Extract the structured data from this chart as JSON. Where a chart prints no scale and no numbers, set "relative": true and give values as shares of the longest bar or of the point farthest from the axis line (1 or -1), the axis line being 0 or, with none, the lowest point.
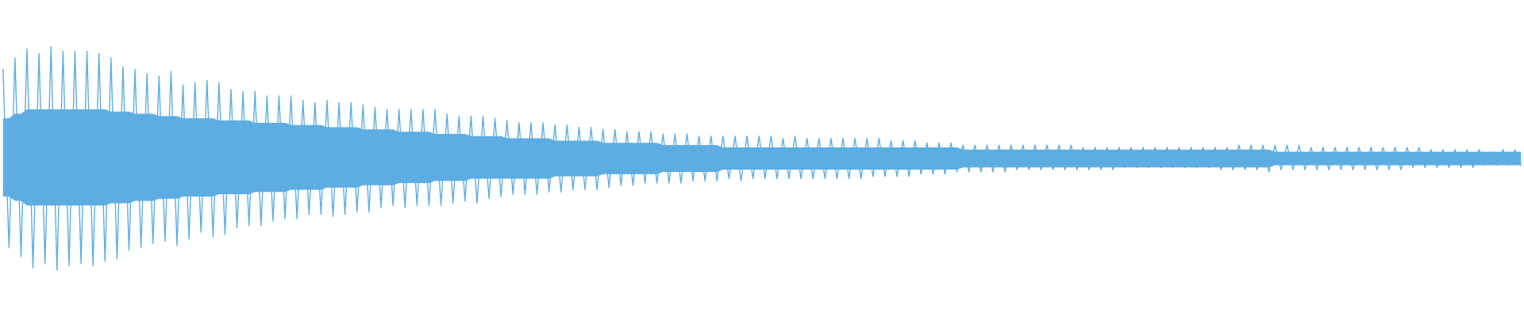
{
  "chart_data": {
    "type": "line",
    "relative": true,
    "categories": [
      null,
      null,
      null,
      null,
      null,
      null,
      null,
      null,
      null,
      null,
      null,
      null,
      null,
      null,
      null,
      null,
      null,
      null,
      null,
      null,
      null,
      null,
      null,
      null,
      null,
      null,
      null,
      null,
      null,
      null,
      null,
      null,
      null,
      null,
      null,
      null,
      null,
      null,
      null,
      null,
      null,
      null,
      null,
      null,
      null,
      null,
      null,
      null,
      null,
      null,
      null,
      null,
      null,
      null,
      null,
      null,
      null,
      null,
      null,
      null,
      null,
      null,
      null,
      null,
      null,
      null,
      null,
      null,
      null,
      null,
      null,
      null,
      null,
      null,
      null,
      null,
      null,
      null,
      null,
      null,
      null,
      null,
      null,
      null,
      null,
      null,
      null,
      null,
      null,
      null,
      null,
      null,
      null,
      null,
      null,
      null,
      null,
      null,
      null,
      null,
      null,
      null,
      null,
      null,
      null,
      null,
      null,
      null,
      null,
      null,
      null,
      null,
      null,
      null,
      null,
      null,
      null,
      null,
      null,
      null,
      null,
      null,
      null,
      null,
      null,
      null,
      null,
      null,
      null,
      null,
      null,
      null,
      null,
      null,
      null,
      null,
      null,
      null,
      null,
      null,
      null,
      null,
      null,
      null,
      null,
      null,
      null,
      null,
      null,
      null,
      null,
      null,
      null,
      null,
      null,
      null,
      null,
      null,
      null,
      null,
      null,
      null,
      null,
      null,
      null,
      null,
      null,
      null,
      null,
      null,
      null,
      null,
      null,
      null,
      null,
      null,
      null,
      null,
      null,
      null,
      null,
      null,
      null,
      null,
      null,
      null,
      null,
      null,
      null,
      null,
      null,
      null,
      null,
      null,
      null,
      null,
      null,
      null,
      null,
      null,
      null,
      null,
      null,
      null,
      null,
      null,
      null,
      null,
      null,
      null,
      null,
      null,
      null,
      null,
      null,
      null,
      null,
      null,
      null,
      null,
      null,
      null,
      null,
      null,
      null,
      null,
      null,
      null,
      null,
      null,
      null,
      null,
      null,
      null,
      null,
      null,
      null,
      null,
      null,
      null,
      null,
      null,
      null,
      null,
      null,
      null,
      null,
      null,
      null,
      null,
      null,
      null,
      null,
      null
    ],
    "series": [
      {
        "color": "#5dade2",
        "values": [
          0.9,
          0.1,
          0.95,
          0.06,
          0.99,
          0.01,
          0.97,
          0.03,
          1.0,
          0.0,
          0.98,
          0.02,
          0.98,
          0.03,
          0.98,
          0.02,
          0.97,
          0.04,
          0.95,
          0.05,
          0.91,
          0.09,
          0.9,
          0.1,
          0.88,
          0.12,
          0.87,
          0.13,
          0.89,
          0.11,
          0.83,
          0.14,
          0.84,
          0.17,
          0.85,
          0.15,
          0.84,
          0.16,
          0.81,
          0.19,
          0.8,
          0.2,
          0.8,
          0.2,
          0.78,
          0.22,
          0.78,
          0.23,
          0.78,
          0.23,
          0.76,
          0.25,
          0.75,
          0.25,
          0.76,
          0.24,
          0.75,
          0.25,
          0.75,
          0.26,
          0.74,
          0.26,
          0.73,
          0.28,
          0.72,
          0.29,
          0.72,
          0.28,
          0.72,
          0.29,
          0.72,
          0.29,
          0.72,
          0.29,
          0.7,
          0.3,
          0.69,
          0.31,
          0.69,
          0.3,
          0.69,
          0.32,
          0.68,
          0.33,
          0.67,
          0.34,
          0.66,
          0.34,
          0.66,
          0.34,
          0.66,
          0.35,
          0.65,
          0.35,
          0.65,
          0.36,
          0.64,
          0.36,
          0.64,
          0.36,
          0.63,
          0.37,
          0.63,
          0.38,
          0.62,
          0.38,
          0.62,
          0.39,
          0.62,
          0.39,
          0.61,
          0.39,
          0.61,
          0.39,
          0.61,
          0.4,
          0.6,
          0.4,
          0.6,
          0.4,
          0.6,
          0.41,
          0.6,
          0.4,
          0.6,
          0.41,
          0.6,
          0.41,
          0.6,
          0.41,
          0.59,
          0.41,
          0.6,
          0.41,
          0.59,
          0.41,
          0.59,
          0.41,
          0.59,
          0.41,
          0.59,
          0.41,
          0.59,
          0.41,
          0.59,
          0.42,
          0.59,
          0.42,
          0.58,
          0.42,
          0.58,
          0.42,
          0.58,
          0.43,
          0.57,
          0.43,
          0.57,
          0.43,
          0.57,
          0.44,
          0.56,
          0.44,
          0.56,
          0.44,
          0.56,
          0.44,
          0.56,
          0.44,
          0.56,
          0.45,
          0.56,
          0.45,
          0.56,
          0.45,
          0.56,
          0.45,
          0.56,
          0.45,
          0.56,
          0.45,
          0.55,
          0.45,
          0.55,
          0.45,
          0.55,
          0.45,
          0.55,
          0.46,
          0.55,
          0.46,
          0.55,
          0.46,
          0.55,
          0.46,
          0.55,
          0.46,
          0.55,
          0.46,
          0.55,
          0.46,
          0.55,
          0.46,
          0.55,
          0.45,
          0.55,
          0.45,
          0.56,
          0.45,
          0.56,
          0.45,
          0.56,
          0.44,
          0.56,
          0.45,
          0.56,
          0.45,
          0.56,
          0.45,
          0.55,
          0.45,
          0.55,
          0.45,
          0.55,
          0.45,
          0.55,
          0.45,
          0.55,
          0.45,
          0.55,
          0.45,
          0.55,
          0.45,
          0.55,
          0.45,
          0.55,
          0.46,
          0.55,
          0.46,
          0.54,
          0.46,
          0.54,
          0.46,
          0.54,
          0.46,
          0.54,
          0.46,
          0.54,
          0.47,
          0.53,
          0.47,
          0.54,
          0.47,
          0.54,
          0.47
        ],
        "upper": [
          0.68,
          0.68,
          0.7,
          0.7,
          0.72,
          0.72,
          0.72,
          0.72,
          0.72,
          0.72,
          0.72,
          0.72,
          0.72,
          0.72,
          0.72,
          0.72,
          0.72,
          0.72,
          0.71,
          0.71,
          0.71,
          0.71,
          0.7,
          0.7,
          0.7,
          0.7,
          0.69,
          0.69,
          0.69,
          0.69,
          0.68,
          0.68,
          0.68,
          0.68,
          0.68,
          0.68,
          0.67,
          0.67,
          0.67,
          0.67,
          0.67,
          0.67,
          0.66,
          0.66,
          0.66,
          0.66,
          0.66,
          0.66,
          0.65,
          0.65,
          0.65,
          0.65,
          0.65,
          0.65,
          0.64,
          0.64,
          0.64,
          0.64,
          0.64,
          0.64,
          0.63,
          0.63,
          0.63,
          0.63,
          0.63,
          0.63,
          0.62,
          0.62,
          0.62,
          0.62,
          0.62,
          0.62,
          0.61,
          0.61,
          0.61,
          0.61,
          0.61,
          0.61,
          0.6,
          0.6,
          0.6,
          0.6,
          0.6,
          0.6,
          0.59,
          0.59,
          0.59,
          0.59,
          0.59,
          0.59,
          0.59,
          0.59,
          0.58,
          0.58,
          0.58,
          0.58,
          0.58,
          0.58,
          0.58,
          0.58,
          0.57,
          0.57,
          0.57,
          0.57,
          0.57,
          0.57,
          0.57,
          0.57,
          0.57,
          0.57,
          0.56,
          0.56,
          0.56,
          0.56,
          0.56,
          0.56,
          0.56,
          0.56,
          0.56,
          0.56,
          0.55,
          0.55,
          0.55,
          0.55,
          0.55,
          0.55,
          0.55,
          0.55,
          0.55,
          0.55,
          0.55,
          0.55,
          0.55,
          0.55,
          0.55,
          0.55,
          0.55,
          0.55,
          0.55,
          0.55,
          0.55,
          0.55,
          0.55,
          0.55,
          0.55,
          0.55,
          0.55,
          0.55,
          0.55,
          0.55,
          0.55,
          0.55,
          0.55,
          0.55,
          0.55,
          0.55,
          0.55,
          0.55,
          0.55,
          0.55,
          0.54,
          0.54,
          0.54,
          0.54,
          0.54,
          0.54,
          0.54,
          0.54,
          0.54,
          0.54,
          0.54,
          0.54,
          0.54,
          0.54,
          0.54,
          0.54,
          0.54,
          0.54,
          0.54,
          0.54,
          0.54,
          0.54,
          0.54,
          0.54,
          0.54,
          0.54,
          0.54,
          0.54,
          0.54,
          0.54,
          0.54,
          0.54,
          0.54,
          0.54,
          0.54,
          0.54,
          0.54,
          0.54,
          0.54,
          0.54,
          0.54,
          0.54,
          0.54,
          0.54,
          0.54,
          0.54,
          0.54,
          0.54,
          0.54,
          0.54,
          0.54,
          0.54,
          0.53,
          0.53,
          0.53,
          0.53,
          0.53,
          0.53,
          0.53,
          0.53,
          0.53,
          0.53,
          0.53,
          0.53,
          0.53,
          0.53,
          0.53,
          0.53,
          0.53,
          0.53,
          0.53,
          0.53,
          0.53,
          0.53,
          0.53,
          0.53,
          0.53,
          0.53,
          0.53,
          0.53,
          0.53,
          0.53,
          0.53,
          0.53,
          0.53,
          0.53,
          0.53,
          0.53,
          0.53,
          0.53,
          0.53,
          0.53,
          0.53,
          0.53
        ],
        "lower": [
          0.33,
          0.33,
          0.31,
          0.31,
          0.29,
          0.29,
          0.29,
          0.29,
          0.29,
          0.29,
          0.29,
          0.29,
          0.29,
          0.29,
          0.29,
          0.29,
          0.29,
          0.29,
          0.3,
          0.3,
          0.3,
          0.3,
          0.31,
          0.31,
          0.31,
          0.31,
          0.32,
          0.32,
          0.32,
          0.32,
          0.33,
          0.33,
          0.33,
          0.33,
          0.33,
          0.33,
          0.34,
          0.34,
          0.34,
          0.34,
          0.34,
          0.34,
          0.35,
          0.35,
          0.35,
          0.35,
          0.35,
          0.35,
          0.36,
          0.36,
          0.36,
          0.36,
          0.36,
          0.36,
          0.37,
          0.37,
          0.37,
          0.37,
          0.37,
          0.37,
          0.38,
          0.38,
          0.38,
          0.38,
          0.38,
          0.38,
          0.39,
          0.39,
          0.39,
          0.39,
          0.39,
          0.39,
          0.4,
          0.4,
          0.4,
          0.4,
          0.4,
          0.4,
          0.41,
          0.41,
          0.41,
          0.41,
          0.41,
          0.41,
          0.41,
          0.41,
          0.41,
          0.41,
          0.41,
          0.41,
          0.41,
          0.41,
          0.42,
          0.42,
          0.42,
          0.42,
          0.42,
          0.42,
          0.42,
          0.42,
          0.43,
          0.43,
          0.43,
          0.43,
          0.43,
          0.43,
          0.43,
          0.43,
          0.43,
          0.43,
          0.44,
          0.44,
          0.44,
          0.44,
          0.44,
          0.44,
          0.44,
          0.44,
          0.44,
          0.44,
          0.45,
          0.45,
          0.45,
          0.45,
          0.45,
          0.45,
          0.45,
          0.45,
          0.45,
          0.45,
          0.45,
          0.45,
          0.45,
          0.45,
          0.45,
          0.45,
          0.45,
          0.45,
          0.45,
          0.45,
          0.45,
          0.45,
          0.45,
          0.45,
          0.45,
          0.45,
          0.45,
          0.45,
          0.45,
          0.45,
          0.45,
          0.45,
          0.45,
          0.45,
          0.45,
          0.45,
          0.45,
          0.45,
          0.45,
          0.45,
          0.46,
          0.46,
          0.46,
          0.46,
          0.46,
          0.46,
          0.46,
          0.46,
          0.46,
          0.46,
          0.46,
          0.46,
          0.46,
          0.46,
          0.46,
          0.46,
          0.46,
          0.46,
          0.46,
          0.46,
          0.46,
          0.46,
          0.46,
          0.46,
          0.46,
          0.46,
          0.46,
          0.46,
          0.46,
          0.46,
          0.46,
          0.46,
          0.46,
          0.46,
          0.46,
          0.46,
          0.46,
          0.46,
          0.46,
          0.46,
          0.46,
          0.46,
          0.46,
          0.46,
          0.46,
          0.46,
          0.46,
          0.46,
          0.46,
          0.46,
          0.46,
          0.46,
          0.47,
          0.47,
          0.47,
          0.47,
          0.47,
          0.47,
          0.47,
          0.47,
          0.47,
          0.47,
          0.47,
          0.47,
          0.47,
          0.47,
          0.47,
          0.47,
          0.47,
          0.47,
          0.47,
          0.47,
          0.47,
          0.47,
          0.47,
          0.47,
          0.47,
          0.47,
          0.47,
          0.47,
          0.47,
          0.47,
          0.47,
          0.47,
          0.47,
          0.47,
          0.47,
          0.47,
          0.47,
          0.47,
          0.47,
          0.47,
          0.47,
          0.47
        ]
      }
    ]
  }
}
